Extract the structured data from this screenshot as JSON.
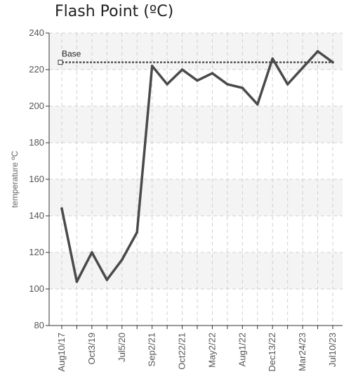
{
  "chart_data": {
    "type": "line",
    "title": "Flash Point (ºC)",
    "ylabel": "temperature ºC",
    "xlabel": "",
    "ylim": [
      80,
      240
    ],
    "yticks": [
      80,
      100,
      120,
      140,
      160,
      180,
      200,
      220,
      240
    ],
    "x_tick_labels": [
      "Aug10/17",
      "Oct3/19",
      "Jul5/20",
      "Sep2/21",
      "Oct22/21",
      "May2/22",
      "Aug1/22",
      "Dec13/22",
      "Mar24/23",
      "Jul10/23"
    ],
    "grid": true,
    "series": [
      {
        "values": [
          144,
          104,
          120,
          105,
          116,
          131,
          222,
          212,
          220,
          214,
          218,
          212,
          210,
          201,
          226,
          212,
          221,
          230,
          224
        ]
      }
    ],
    "reference_line": {
      "name": "Base",
      "value": 224
    },
    "colors": {
      "series": "#4a4a4a",
      "base": "#555555",
      "band": "#f4f4f4",
      "grid": "#d0d0d0",
      "axis": "#333333"
    }
  }
}
